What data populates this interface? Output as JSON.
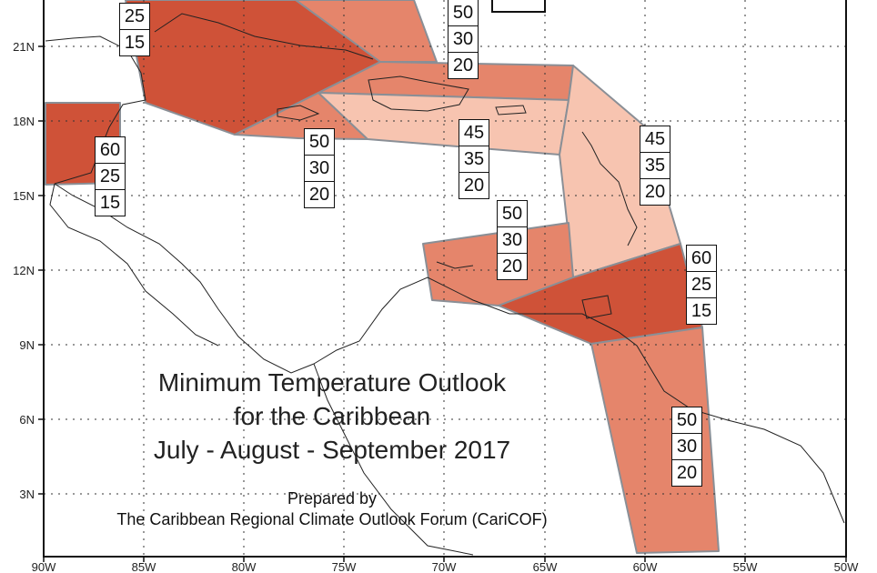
{
  "map": {
    "title_lines": [
      "Minimum Temperature Outlook",
      "for the Caribbean",
      "July - August - September 2017"
    ],
    "credit_lines": [
      "Prepared by",
      "The Caribbean Regional Climate Outlook Forum (CariCOF)"
    ],
    "legend_fragment_text": "",
    "lon_labels": [
      "90W",
      "85W",
      "80W",
      "75W",
      "70W",
      "65W",
      "60W",
      "55W",
      "50W"
    ],
    "lat_labels": [
      "3N",
      "6N",
      "9N",
      "12N",
      "15N",
      "18N",
      "21N"
    ],
    "colors": {
      "dark": "#cf5238",
      "medium": "#e5856b",
      "light": "#f7c4b0",
      "border": "#8a8f96"
    },
    "probability_boxes": [
      {
        "id": "bahamas-west",
        "values": [
          "25",
          "15"
        ]
      },
      {
        "id": "bahamas-east",
        "values": [
          "50",
          "30",
          "20"
        ]
      },
      {
        "id": "belize",
        "values": [
          "60",
          "25",
          "15"
        ]
      },
      {
        "id": "jamaica",
        "values": [
          "50",
          "30",
          "20"
        ]
      },
      {
        "id": "hispaniola",
        "values": [
          "45",
          "35",
          "20"
        ]
      },
      {
        "id": "leeward",
        "values": [
          "45",
          "35",
          "20"
        ]
      },
      {
        "id": "abc-islands",
        "values": [
          "50",
          "30",
          "20"
        ]
      },
      {
        "id": "trinidad",
        "values": [
          "60",
          "25",
          "15"
        ]
      },
      {
        "id": "guianas",
        "values": [
          "50",
          "30",
          "20"
        ]
      }
    ]
  }
}
